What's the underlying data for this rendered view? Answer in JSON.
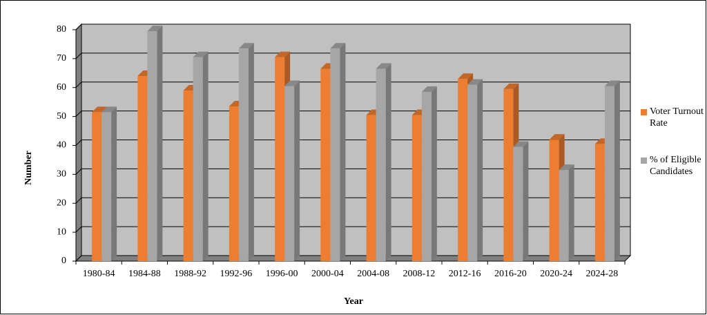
{
  "chart_data": {
    "type": "bar",
    "x_label": "Year",
    "y_label": "Number",
    "categories": [
      "1980-84",
      "1984-88",
      "1988-92",
      "1992-96",
      "1996-00",
      "2000-04",
      "2004-08",
      "2008-12",
      "2012-16",
      "2016-20",
      "2020-24",
      "2024-28"
    ],
    "series": [
      {
        "name": "Voter Turnout Rate",
        "color": "#ed7d31",
        "values": [
          51.5,
          64,
          59,
          53.5,
          70.5,
          66.5,
          50.5,
          50.5,
          63,
          59.5,
          42,
          40.5
        ]
      },
      {
        "name": "% of Eligible Candidates",
        "color": "#a6a6a6",
        "values": [
          51.5,
          79.5,
          70.5,
          73.5,
          60.5,
          73.5,
          66.5,
          58.5,
          61,
          39.5,
          31.5,
          60.5
        ]
      }
    ],
    "ylim": [
      0,
      80
    ],
    "yticks": [
      0,
      10,
      20,
      30,
      40,
      50,
      60,
      70,
      80
    ],
    "grid": true,
    "legend": "right"
  }
}
